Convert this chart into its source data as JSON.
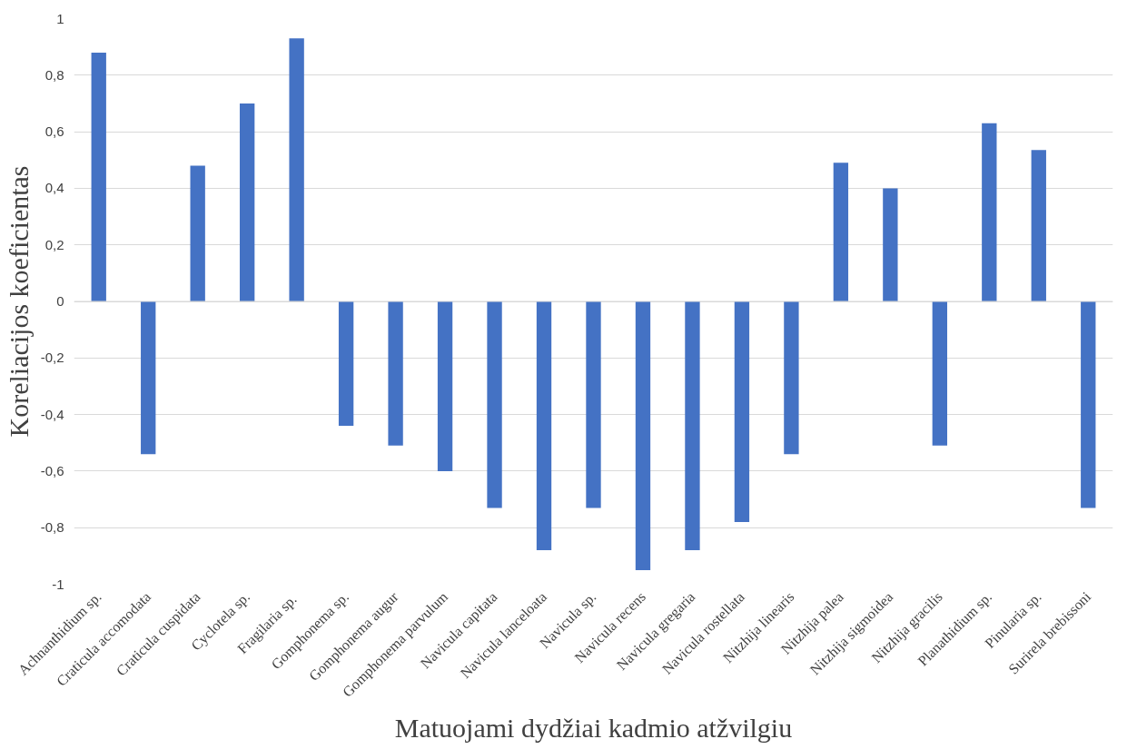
{
  "chart_data": {
    "type": "bar",
    "xlabel": "Matuojami dydžiai kadmio atžvilgiu",
    "ylabel": "Koreliacijos koeficientas",
    "categories": [
      "Achnanthidium sp.",
      "Craticula accomodata",
      "Craticula cuspidata",
      "Cyclotela sp.",
      "Fragilaria  sp.",
      "Gomphonema sp.",
      "Gomphonema augur",
      "Gomphonema parvulum",
      "Navicula capitata",
      "Navicula lanceloata",
      "Navicula sp.",
      "Navicula recens",
      "Navicula gregaria",
      "Navicula rostellata",
      "Nitzhija linearis",
      "Nitzhija palea",
      "Nitzhija sigmoidea",
      "Nitzhija gracilis",
      "Planathidium sp.",
      "Pinularia sp.",
      "Surirela brebissoni"
    ],
    "values": [
      0.88,
      -0.54,
      0.48,
      0.7,
      0.93,
      -0.44,
      -0.51,
      -0.6,
      -0.73,
      -0.88,
      -0.73,
      -0.95,
      -0.88,
      -0.78,
      -0.54,
      0.49,
      0.4,
      -0.51,
      0.63,
      0.535,
      -0.73
    ],
    "color": "#4472c4",
    "ylim": [
      -1,
      1
    ],
    "yticks": [
      {
        "value": -1,
        "label": "-1"
      },
      {
        "value": -0.8,
        "label": "-0,8"
      },
      {
        "value": -0.6,
        "label": "-0,6"
      },
      {
        "value": -0.4,
        "label": "-0,4"
      },
      {
        "value": -0.2,
        "label": "-0,2"
      },
      {
        "value": 0,
        "label": "0"
      },
      {
        "value": 0.2,
        "label": "0,2"
      },
      {
        "value": 0.4,
        "label": "0,4"
      },
      {
        "value": 0.6,
        "label": "0,6"
      },
      {
        "value": 0.8,
        "label": "0,8"
      },
      {
        "value": 1,
        "label": "1"
      }
    ],
    "grid": "y"
  }
}
